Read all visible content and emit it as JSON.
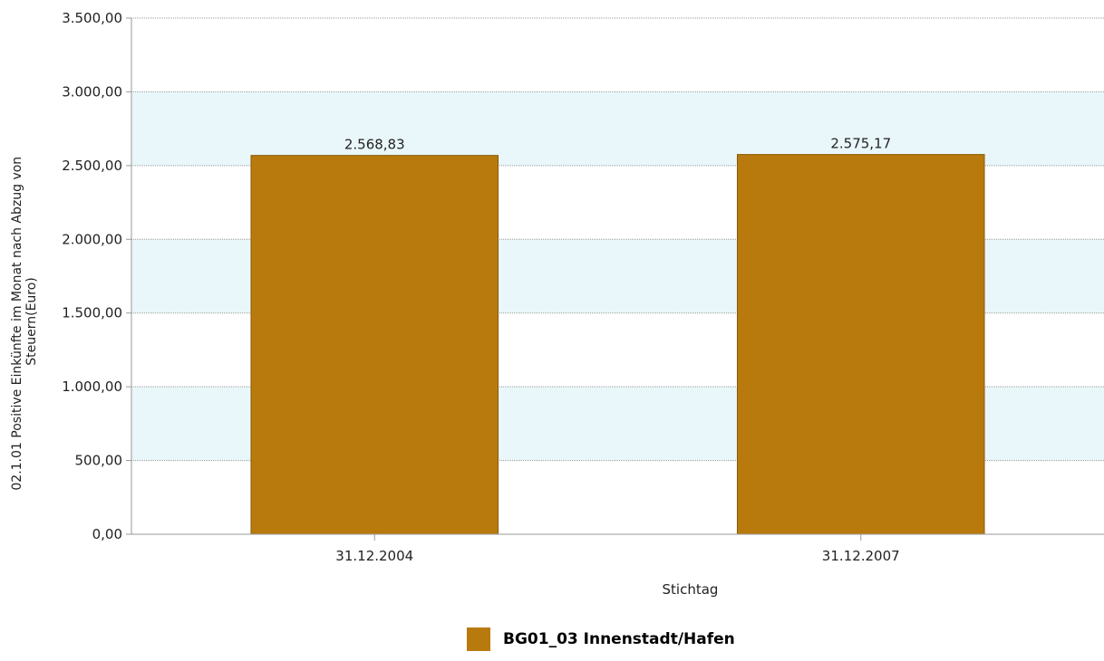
{
  "chart_data": {
    "type": "bar",
    "title": "",
    "xlabel": "Stichtag",
    "ylabel_lines": [
      "02.1.01 Positive Einkünfte im Monat nach Abzug von",
      "Steuern(Euro)"
    ],
    "categories": [
      "31.12.2004",
      "31.12.2007"
    ],
    "series": [
      {
        "name": "BG01_03 Innenstadt/Hafen",
        "values": [
          2568.83,
          2575.17
        ],
        "value_labels": [
          "2.568,83",
          "2.575,17"
        ],
        "color": "#b87a0c"
      }
    ],
    "ylim": [
      0,
      3500
    ],
    "yticks": [
      0,
      500,
      1000,
      1500,
      2000,
      2500,
      3000,
      3500
    ],
    "ytick_labels": [
      "0,00",
      "500,00",
      "1.000,00",
      "1.500,00",
      "2.000,00",
      "2.500,00",
      "3.000,00",
      "3.500,00"
    ],
    "band_color": "#e9f7fa",
    "grid": true,
    "legend_position": "bottom"
  }
}
